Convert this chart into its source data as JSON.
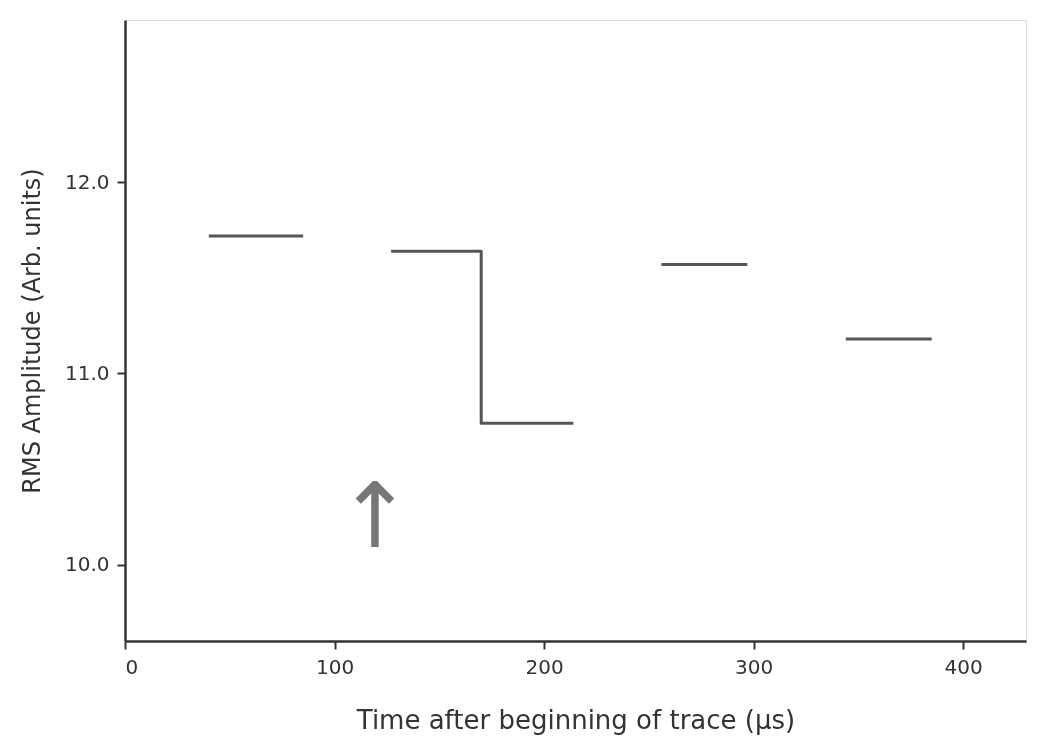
{
  "chart_data": {
    "type": "line",
    "xlabel": "Time after beginning of trace (μs)",
    "ylabel": "RMS  Amplitude   (Arb. units)",
    "xlim": [
      0,
      430
    ],
    "xticks": [
      0,
      100,
      200,
      300,
      400
    ],
    "ylim": [
      9.6,
      12.85
    ],
    "yticks": [
      {
        "value": 10,
        "label": "10.0"
      },
      {
        "value": 11,
        "label": "11.0"
      },
      {
        "value": 12,
        "label": "12.0"
      }
    ],
    "grid": false,
    "marker": "none",
    "line_style": "solid",
    "series": [
      {
        "color": "#555555",
        "x": [
          40,
          85
        ],
        "values": [
          11.72,
          11.72
        ]
      },
      {
        "color": "#555555",
        "x": [
          127,
          170,
          170,
          214
        ],
        "values": [
          11.64,
          11.64,
          10.74,
          10.74
        ]
      },
      {
        "color": "#555555",
        "x": [
          256,
          297
        ],
        "values": [
          11.57,
          11.57
        ]
      },
      {
        "color": "#555555",
        "x": [
          344,
          385
        ],
        "values": [
          11.18,
          11.18
        ]
      }
    ],
    "annotations": [
      "↑"
    ]
  }
}
